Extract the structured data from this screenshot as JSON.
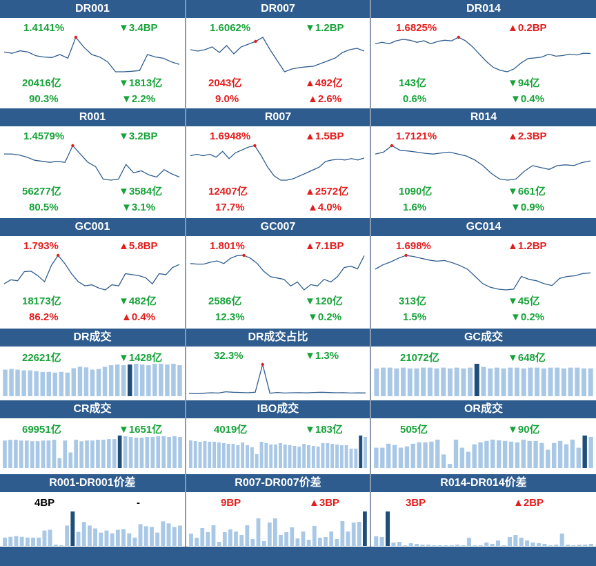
{
  "colors": {
    "header": "#2e5c8e",
    "up": "#e31c1c",
    "down": "#18a33a",
    "line": "#2e5c8e",
    "bar": "#a9c8e6",
    "bar_highlight": "#1f4e79",
    "marker": "#e31c1c"
  },
  "rate_panels": [
    {
      "title": "DR001",
      "rate": "1.4141%",
      "rate_dir": "down",
      "change": "▼3.4BP",
      "change_dir": "down",
      "volume": "20416亿",
      "vol_change": "▼1813亿",
      "vol_dir": "down",
      "share": "90.3%",
      "share_change": "▼2.2%",
      "share_dir": "down",
      "series": [
        1.41,
        1.405,
        1.415,
        1.41,
        1.395,
        1.39,
        1.388,
        1.4,
        1.385,
        1.47,
        1.43,
        1.4,
        1.39,
        1.37,
        1.33,
        1.33,
        1.332,
        1.335,
        1.4,
        1.39,
        1.385,
        1.37,
        1.36
      ],
      "peak_index": 9
    },
    {
      "title": "DR007",
      "rate": "1.6062%",
      "rate_dir": "down",
      "change": "▼1.2BP",
      "change_dir": "down",
      "volume": "2043亿",
      "vol_change": "▲492亿",
      "vol_dir": "up",
      "share": "9.0%",
      "share_change": "▲2.6%",
      "share_dir": "up",
      "series": [
        1.61,
        1.605,
        1.61,
        1.62,
        1.6,
        1.625,
        1.595,
        1.62,
        1.63,
        1.64,
        1.655,
        1.61,
        1.57,
        1.53,
        1.54,
        1.545,
        1.548,
        1.55,
        1.56,
        1.57,
        1.58,
        1.6,
        1.61,
        1.615,
        1.605
      ],
      "peak_index": 9
    },
    {
      "title": "DR014",
      "rate": "1.6825%",
      "rate_dir": "up",
      "change": "▲0.2BP",
      "change_dir": "up",
      "volume": "143亿",
      "vol_change": "▼94亿",
      "vol_dir": "down",
      "share": "0.6%",
      "share_change": "▼0.4%",
      "share_dir": "down",
      "series": [
        1.66,
        1.665,
        1.66,
        1.67,
        1.675,
        1.672,
        1.665,
        1.67,
        1.66,
        1.668,
        1.672,
        1.67,
        1.682,
        1.67,
        1.65,
        1.625,
        1.6,
        1.58,
        1.57,
        1.565,
        1.575,
        1.595,
        1.61,
        1.612,
        1.615,
        1.625,
        1.618,
        1.62,
        1.625,
        1.622,
        1.628,
        1.627
      ],
      "peak_index": 12
    },
    {
      "title": "R001",
      "rate": "1.4579%",
      "rate_dir": "down",
      "change": "▼3.2BP",
      "change_dir": "down",
      "volume": "56277亿",
      "vol_change": "▼3584亿",
      "vol_dir": "down",
      "share": "80.5%",
      "share_change": "▼3.1%",
      "share_dir": "down",
      "series": [
        1.42,
        1.42,
        1.415,
        1.405,
        1.39,
        1.385,
        1.38,
        1.385,
        1.38,
        1.46,
        1.42,
        1.38,
        1.36,
        1.3,
        1.295,
        1.3,
        1.37,
        1.33,
        1.34,
        1.32,
        1.31,
        1.345,
        1.325,
        1.31
      ],
      "peak_index": 9
    },
    {
      "title": "R007",
      "rate": "1.6948%",
      "rate_dir": "up",
      "change": "▲1.5BP",
      "change_dir": "up",
      "volume": "12407亿",
      "vol_change": "▲2572亿",
      "vol_dir": "up",
      "share": "17.7%",
      "share_change": "▲4.0%",
      "share_dir": "up",
      "series": [
        1.66,
        1.665,
        1.66,
        1.665,
        1.655,
        1.675,
        1.65,
        1.67,
        1.68,
        1.69,
        1.695,
        1.66,
        1.62,
        1.59,
        1.575,
        1.575,
        1.58,
        1.59,
        1.6,
        1.61,
        1.62,
        1.64,
        1.645,
        1.648,
        1.645,
        1.65,
        1.645,
        1.652
      ],
      "peak_index": 10
    },
    {
      "title": "R014",
      "rate": "1.7121%",
      "rate_dir": "up",
      "change": "▲2.3BP",
      "change_dir": "up",
      "volume": "1090亿",
      "vol_change": "▼661亿",
      "vol_dir": "down",
      "share": "1.6%",
      "share_change": "▼0.9%",
      "share_dir": "down",
      "series": [
        1.69,
        1.695,
        1.712,
        1.7,
        1.698,
        1.695,
        1.692,
        1.69,
        1.693,
        1.695,
        1.69,
        1.685,
        1.675,
        1.66,
        1.64,
        1.625,
        1.622,
        1.625,
        1.645,
        1.66,
        1.655,
        1.65,
        1.66,
        1.662,
        1.66,
        1.668,
        1.672
      ],
      "peak_index": 2
    },
    {
      "title": "GC001",
      "rate": "1.793%",
      "rate_dir": "up",
      "change": "▲5.8BP",
      "change_dir": "up",
      "volume": "18173亿",
      "vol_change": "▼482亿",
      "vol_dir": "down",
      "share": "86.2%",
      "share_change": "▲0.4%",
      "share_dir": "up",
      "series": [
        1.65,
        1.67,
        1.665,
        1.71,
        1.712,
        1.69,
        1.66,
        1.74,
        1.79,
        1.75,
        1.7,
        1.66,
        1.64,
        1.645,
        1.63,
        1.62,
        1.645,
        1.64,
        1.7,
        1.695,
        1.69,
        1.68,
        1.65,
        1.7,
        1.695,
        1.73,
        1.745
      ],
      "peak_index": 8
    },
    {
      "title": "GC007",
      "rate": "1.801%",
      "rate_dir": "up",
      "change": "▲7.1BP",
      "change_dir": "up",
      "volume": "2586亿",
      "vol_change": "▼120亿",
      "vol_dir": "down",
      "share": "12.3%",
      "share_change": "▼0.2%",
      "share_dir": "down",
      "series": [
        1.77,
        1.768,
        1.768,
        1.775,
        1.78,
        1.77,
        1.79,
        1.8,
        1.801,
        1.79,
        1.77,
        1.74,
        1.72,
        1.715,
        1.71,
        1.685,
        1.7,
        1.67,
        1.69,
        1.685,
        1.71,
        1.7,
        1.72,
        1.755,
        1.76,
        1.75,
        1.8
      ],
      "peak_index": 8
    },
    {
      "title": "GC014",
      "rate": "1.698%",
      "rate_dir": "up",
      "change": "▲1.2BP",
      "change_dir": "up",
      "volume": "313亿",
      "vol_change": "▼45亿",
      "vol_dir": "down",
      "share": "1.5%",
      "share_change": "▼0.2%",
      "share_dir": "down",
      "series": [
        1.66,
        1.672,
        1.68,
        1.69,
        1.698,
        1.695,
        1.69,
        1.685,
        1.682,
        1.684,
        1.678,
        1.67,
        1.66,
        1.64,
        1.62,
        1.61,
        1.605,
        1.603,
        1.605,
        1.64,
        1.632,
        1.628,
        1.62,
        1.615,
        1.635,
        1.64,
        1.642,
        1.648,
        1.65
      ],
      "peak_index": 4
    }
  ],
  "bar_panels": [
    {
      "title": "DR成交",
      "value": "22621亿",
      "value_dir": "down",
      "change": "▼1428亿",
      "change_dir": "down",
      "type": "bar",
      "values": [
        36,
        37,
        36,
        35,
        35,
        34,
        33,
        33,
        32,
        33,
        32,
        38,
        40,
        39,
        36,
        37,
        40,
        42,
        43,
        42,
        43,
        44,
        43,
        42,
        44,
        44,
        43,
        44,
        42
      ],
      "highlight": [
        20
      ]
    },
    {
      "title": "DR成交占比",
      "value": "32.3%",
      "value_dir": "down",
      "change": "▼1.3%",
      "change_dir": "down",
      "type": "line",
      "values": [
        3,
        2.5,
        3,
        3.5,
        3.2,
        4.5,
        4,
        3.8,
        3.5,
        4,
        32.3,
        3,
        3.8,
        3.2,
        3.5,
        3.6,
        3.4,
        3.8,
        4,
        3.7,
        3.5,
        3.6,
        3.2,
        3.4,
        3.3
      ],
      "peak_index": 10
    },
    {
      "title": "GC成交",
      "value": "21072亿",
      "value_dir": "down",
      "change": "▼648亿",
      "change_dir": "down",
      "type": "bar",
      "values": [
        36,
        37,
        37,
        36,
        37,
        36,
        36,
        37,
        37,
        36,
        37,
        36,
        37,
        36,
        37,
        42,
        38,
        36,
        37,
        36,
        37,
        37,
        36,
        37,
        37,
        36,
        37,
        37,
        36,
        37,
        37,
        36,
        36
      ],
      "highlight": [
        15
      ]
    },
    {
      "title": "CR成交",
      "value": "69951亿",
      "value_dir": "down",
      "change": "▼1651亿",
      "change_dir": "down",
      "type": "bar",
      "values": [
        39,
        40,
        40,
        39,
        39,
        38,
        38,
        39,
        39,
        40,
        14,
        39,
        22,
        40,
        38,
        39,
        39,
        40,
        40,
        41,
        41,
        46,
        45,
        44,
        43,
        43,
        44,
        44,
        45,
        45,
        44,
        45,
        44
      ],
      "highlight": [
        21
      ]
    },
    {
      "title": "IBO成交",
      "value": "4019亿",
      "value_dir": "down",
      "change": "▼183亿",
      "change_dir": "down",
      "type": "bar",
      "values": [
        40,
        39,
        38,
        39,
        38,
        38,
        37,
        36,
        35,
        35,
        33,
        37,
        33,
        30,
        20,
        38,
        36,
        34,
        34,
        36,
        34,
        33,
        32,
        31,
        35,
        33,
        32,
        31,
        36,
        36,
        35,
        34,
        33,
        33,
        28,
        28,
        47,
        45
      ],
      "highlight": [
        36
      ]
    },
    {
      "title": "OR成交",
      "value": "505亿",
      "value_dir": "down",
      "change": "▼90亿",
      "change_dir": "down",
      "type": "bar",
      "values": [
        30,
        30,
        36,
        34,
        30,
        32,
        36,
        38,
        38,
        39,
        42,
        20,
        6,
        42,
        30,
        24,
        35,
        38,
        40,
        42,
        41,
        40,
        39,
        38,
        42,
        40,
        40,
        37,
        27,
        37,
        40,
        35,
        42,
        30,
        48,
        46
      ],
      "highlight": [
        34
      ]
    }
  ],
  "spread_panels": [
    {
      "title": "R001-DR001价差",
      "value": "4BP",
      "value_dir": "neu",
      "change": "-",
      "change_dir": "neu",
      "values": [
        12,
        13,
        14,
        13,
        12,
        12,
        12,
        22,
        23,
        2,
        1,
        29,
        49,
        20,
        34,
        29,
        25,
        19,
        22,
        18,
        23,
        24,
        18,
        12,
        31,
        28,
        27,
        19,
        35,
        32,
        27,
        29
      ],
      "highlight": [
        12
      ]
    },
    {
      "title": "R007-DR007价差",
      "value": "9BP",
      "value_dir": "up",
      "change": "▲3BP",
      "change_dir": "up",
      "values": [
        18,
        12,
        26,
        20,
        30,
        6,
        20,
        24,
        21,
        16,
        30,
        10,
        40,
        7,
        34,
        40,
        16,
        20,
        27,
        11,
        21,
        9,
        29,
        12,
        13,
        21,
        10,
        36,
        21,
        34,
        35,
        50
      ],
      "highlight": [
        31
      ]
    },
    {
      "title": "R014-DR014价差",
      "value": "3BP",
      "value_dir": "up",
      "change": "▲2BP",
      "change_dir": "up",
      "values": [
        14,
        13,
        50,
        5,
        6,
        1,
        4,
        3,
        2,
        2,
        1,
        1,
        1,
        1,
        2,
        1,
        12,
        1,
        1,
        5,
        3,
        8,
        1,
        13,
        16,
        12,
        8,
        5,
        4,
        3,
        1,
        2,
        18,
        2,
        1,
        2,
        2,
        3
      ],
      "highlight": [
        2
      ]
    }
  ]
}
